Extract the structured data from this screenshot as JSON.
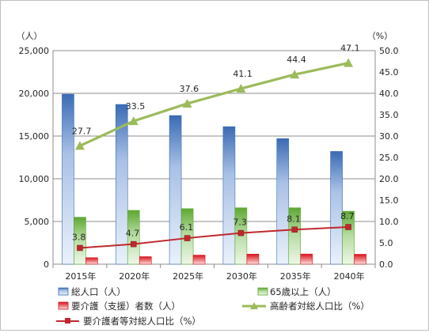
{
  "chart_data": {
    "type": "bar",
    "categories": [
      "2015年",
      "2020年",
      "2025年",
      "2030年",
      "2035年",
      "2040年"
    ],
    "y_left": {
      "unit_label": "（人）",
      "ylim": [
        0,
        25000
      ],
      "ticks": [
        "0",
        "5,000",
        "10,000",
        "15,000",
        "20,000",
        "25,000"
      ],
      "tick_values": [
        0,
        5000,
        10000,
        15000,
        20000,
        25000
      ]
    },
    "y_right": {
      "unit_label": "（%）",
      "ylim": [
        0,
        50
      ],
      "ticks": [
        "0.0",
        "5.0",
        "10.0",
        "15.0",
        "20.0",
        "25.0",
        "30.0",
        "35.0",
        "40.0",
        "45.0",
        "50.0"
      ],
      "tick_values": [
        0,
        5,
        10,
        15,
        20,
        25,
        30,
        35,
        40,
        45,
        50
      ]
    },
    "series": [
      {
        "name": "総人口（人）",
        "kind": "bar",
        "axis": "left",
        "color": "#4f81bd",
        "values": [
          19900,
          18700,
          17400,
          16100,
          14700,
          13200
        ]
      },
      {
        "name": "65歳以上（人）",
        "kind": "bar",
        "axis": "left",
        "color": "#77b844",
        "values": [
          5500,
          6300,
          6500,
          6600,
          6600,
          6200
        ]
      },
      {
        "name": "要介護（支援）者数（人）",
        "kind": "bar",
        "axis": "left",
        "color": "#e03030",
        "values": [
          760,
          880,
          1060,
          1180,
          1190,
          1160
        ]
      },
      {
        "name": "高齢者対総人口比（%）",
        "kind": "line",
        "axis": "right",
        "color": "#9bbb59",
        "marker": "triangle",
        "values": [
          27.7,
          33.5,
          37.6,
          41.1,
          44.4,
          47.1
        ],
        "labels": [
          "27.7",
          "33.5",
          "37.6",
          "41.1",
          "44.4",
          "47.1"
        ]
      },
      {
        "name": "要介護者等対総人口比（%）",
        "kind": "line",
        "axis": "right",
        "color": "#c0282d",
        "marker": "square",
        "values": [
          3.8,
          4.7,
          6.1,
          7.3,
          8.1,
          8.7
        ],
        "labels": [
          "3.8",
          "4.7",
          "6.1",
          "7.3",
          "8.1",
          "8.7"
        ]
      }
    ],
    "grid": "horizontal",
    "legend_position": "bottom"
  }
}
